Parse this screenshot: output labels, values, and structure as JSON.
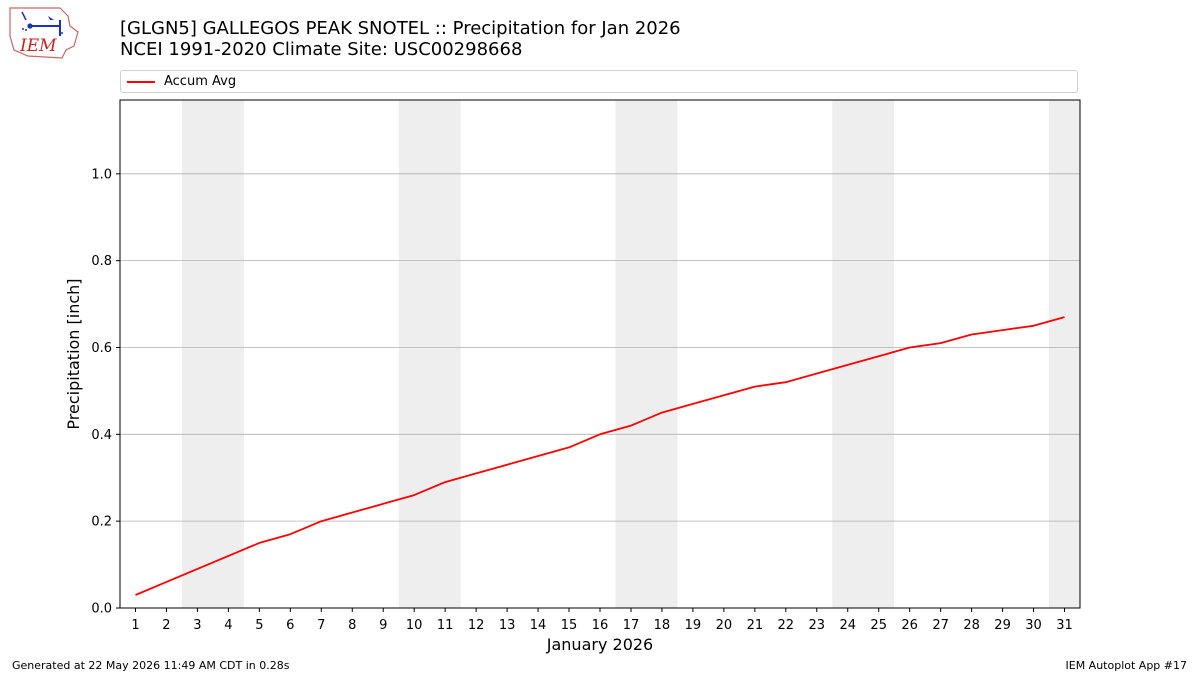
{
  "header": {
    "title_line1": "[GLGN5] GALLEGOS PEAK SNOTEL :: Precipitation for Jan 2026",
    "title_line2": "NCEI 1991-2020 Climate Site: USC00298668"
  },
  "logo": {
    "text": "IEM",
    "icon": "iem-logo-icon"
  },
  "footer": {
    "left": "Generated at 22 May 2026 11:49 AM CDT in 0.28s",
    "right": "IEM Autoplot App #17"
  },
  "colors": {
    "series": "#ff0000",
    "weekend_band": "#eeeeee",
    "grid": "#b0b0b0"
  },
  "chart_data": {
    "type": "line",
    "title": "[GLGN5] GALLEGOS PEAK SNOTEL :: Precipitation for Jan 2026",
    "subtitle": "NCEI 1991-2020 Climate Site: USC00298668",
    "xlabel": "January 2026",
    "ylabel": "Precipitation [inch]",
    "x": [
      1,
      2,
      3,
      4,
      5,
      6,
      7,
      8,
      9,
      10,
      11,
      12,
      13,
      14,
      15,
      16,
      17,
      18,
      19,
      20,
      21,
      22,
      23,
      24,
      25,
      26,
      27,
      28,
      29,
      30,
      31
    ],
    "xlim": [
      0.5,
      31.5
    ],
    "ylim": [
      0,
      1.17
    ],
    "yticks": [
      0.0,
      0.2,
      0.4,
      0.6,
      0.8,
      1.0
    ],
    "ytick_labels": [
      "0.0",
      "0.2",
      "0.4",
      "0.6",
      "0.8",
      "1.0"
    ],
    "grid": "y-major",
    "legend_position": "top",
    "shaded_x_ranges": [
      [
        2.5,
        4.5
      ],
      [
        9.5,
        11.5
      ],
      [
        16.5,
        18.5
      ],
      [
        23.5,
        25.5
      ],
      [
        30.5,
        31.5
      ]
    ],
    "series": [
      {
        "name": "Accum Avg",
        "color": "#ff0000",
        "values": [
          0.03,
          0.06,
          0.09,
          0.12,
          0.15,
          0.17,
          0.2,
          0.22,
          0.24,
          0.26,
          0.29,
          0.31,
          0.33,
          0.35,
          0.37,
          0.4,
          0.42,
          0.45,
          0.47,
          0.49,
          0.51,
          0.52,
          0.54,
          0.56,
          0.58,
          0.6,
          0.61,
          0.63,
          0.64,
          0.65,
          0.67
        ]
      }
    ]
  }
}
